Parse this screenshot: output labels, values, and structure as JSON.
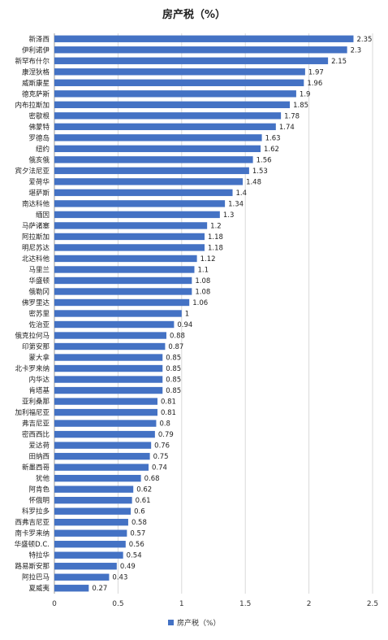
{
  "chart_data": {
    "type": "bar",
    "orientation": "horizontal",
    "title": "房产税（%）",
    "xlim": [
      0,
      2.5
    ],
    "x_ticks": [
      "0",
      "0.5",
      "1",
      "1.5",
      "2",
      "2.5"
    ],
    "grid": true,
    "legend_position": "bottom-center",
    "bar_color": "#4472c4",
    "series": [
      {
        "name": "房产税（%）"
      }
    ],
    "categories": [
      "新泽西",
      "伊利诺伊",
      "新罕布什尔",
      "康涅狄格",
      "威斯康星",
      "德克萨斯",
      "内布拉斯加",
      "密歇根",
      "佛蒙特",
      "罗德岛",
      "纽约",
      "俄亥俄",
      "宾夕法尼亚",
      "爱荷华",
      "堪萨斯",
      "南达科他",
      "缅因",
      "马萨诸塞",
      "阿拉斯加",
      "明尼苏达",
      "北达科他",
      "马里兰",
      "华盛顿",
      "俄勒冈",
      "佛罗里达",
      "密苏里",
      "佐治亚",
      "俄克拉何马",
      "印第安那",
      "蒙大拿",
      "北卡罗来纳",
      "内华达",
      "肯塔基",
      "亚利桑那",
      "加利福尼亚",
      "弗吉尼亚",
      "密西西比",
      "爱达荷",
      "田纳西",
      "新墨西哥",
      "犹他",
      "阿肯色",
      "怀俄明",
      "科罗拉多",
      "西弗吉尼亚",
      "南卡罗来纳",
      "华盛顿D.C.",
      "特拉华",
      "路易斯安那",
      "阿拉巴马",
      "夏威夷"
    ],
    "values": [
      2.35,
      2.3,
      2.15,
      1.97,
      1.96,
      1.9,
      1.85,
      1.78,
      1.74,
      1.63,
      1.62,
      1.56,
      1.53,
      1.48,
      1.4,
      1.34,
      1.3,
      1.2,
      1.18,
      1.18,
      1.12,
      1.1,
      1.08,
      1.08,
      1.06,
      1,
      0.94,
      0.88,
      0.87,
      0.85,
      0.85,
      0.85,
      0.85,
      0.81,
      0.81,
      0.8,
      0.79,
      0.76,
      0.75,
      0.74,
      0.68,
      0.62,
      0.61,
      0.6,
      0.58,
      0.57,
      0.56,
      0.54,
      0.49,
      0.43,
      0.27
    ],
    "value_labels": [
      "2.35",
      "2.3",
      "2.15",
      "1.97",
      "1.96",
      "1.9",
      "1.85",
      "1.78",
      "1.74",
      "1.63",
      "1.62",
      "1.56",
      "1.53",
      "1.48",
      "1.4",
      "1.34",
      "1.3",
      "1.2",
      "1.18",
      "1.18",
      "1.12",
      "1.1",
      "1.08",
      "1.08",
      "1.06",
      "1",
      "0.94",
      "0.88",
      "0.87",
      "0.85",
      "0.85",
      "0.85",
      "0.85",
      "0.81",
      "0.81",
      "0.8",
      "0.79",
      "0.76",
      "0.75",
      "0.74",
      "0.68",
      "0.62",
      "0.61",
      "0.6",
      "0.58",
      "0.57",
      "0.56",
      "0.54",
      "0.49",
      "0.43",
      "0.27"
    ]
  }
}
